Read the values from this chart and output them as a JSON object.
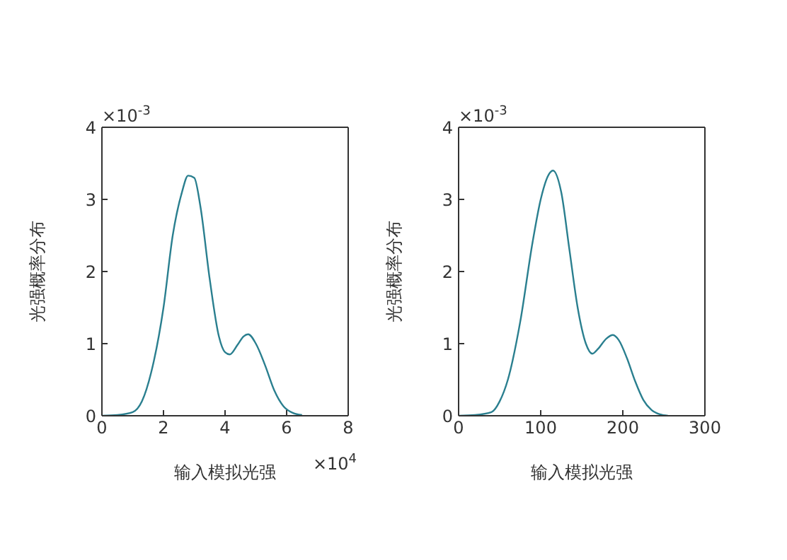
{
  "chart_data": [
    {
      "type": "line",
      "xlabel": "输入模拟光强",
      "ylabel": "光强概率分布",
      "annotations": [
        "×10$^{-3}$",
        "×10$^{4}$"
      ],
      "xlim": [
        0,
        8
      ],
      "xticks": [
        0,
        2,
        4,
        6,
        8
      ],
      "ylim": [
        0,
        4
      ],
      "yticks": [
        0,
        1,
        2,
        3,
        4
      ],
      "grid": false,
      "legend": false,
      "marker": "none",
      "line_style": "solid",
      "x": [
        0,
        0.5,
        1,
        1.3,
        1.6,
        2,
        2.3,
        2.6,
        2.8,
        3,
        3.2,
        3.5,
        3.8,
        4,
        4.15,
        4.4,
        4.6,
        4.75,
        5,
        5.3,
        5.6,
        5.9,
        6.2,
        6.5
      ],
      "series": [
        {
          "color": "#2a7f8f",
          "values": [
            0,
            0.01,
            0.05,
            0.2,
            0.6,
            1.5,
            2.5,
            3.1,
            3.33,
            3.3,
            2.9,
            1.9,
            1.1,
            0.88,
            0.85,
            0.98,
            1.1,
            1.13,
            1,
            0.7,
            0.35,
            0.13,
            0.04,
            0.01
          ]
        }
      ]
    },
    {
      "type": "line",
      "xlabel": "输入模拟光强",
      "ylabel": "光强概率分布",
      "annotations": [
        "×10$^{-3}$"
      ],
      "xlim": [
        0,
        300
      ],
      "xticks": [
        0,
        100,
        200,
        300
      ],
      "ylim": [
        0,
        4
      ],
      "yticks": [
        0,
        1,
        2,
        3,
        4
      ],
      "grid": false,
      "legend": false,
      "marker": "none",
      "line_style": "solid",
      "x": [
        0,
        20,
        40,
        50,
        60,
        75,
        90,
        100,
        110,
        115,
        125,
        135,
        145,
        155,
        163,
        170,
        180,
        188,
        195,
        205,
        215,
        225,
        235,
        245,
        255
      ],
      "series": [
        {
          "color": "#2a7f8f",
          "values": [
            0,
            0.01,
            0.05,
            0.2,
            0.5,
            1.3,
            2.4,
            3,
            3.35,
            3.4,
            3.1,
            2.3,
            1.5,
            1,
            0.86,
            0.93,
            1.07,
            1.12,
            1.05,
            0.8,
            0.48,
            0.22,
            0.08,
            0.02,
            0
          ]
        }
      ]
    }
  ]
}
